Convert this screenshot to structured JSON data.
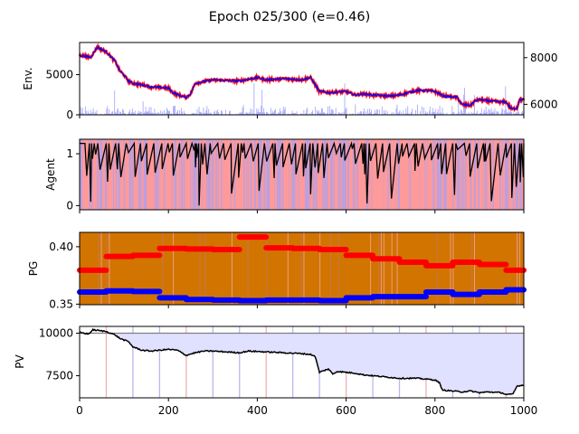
{
  "figure": {
    "title": "Epoch 025/300 (e=0.46)",
    "x_tick_labels": [
      "0",
      "200",
      "400",
      "600",
      "800",
      "1000"
    ]
  },
  "chart_data": [
    {
      "type": "line",
      "ylabel": "Env.",
      "xlim": [
        0,
        1000
      ],
      "ylim": [
        0,
        9000
      ],
      "y_ticks": [
        0,
        5000
      ],
      "y2lim": [
        5550,
        8650
      ],
      "y2_ticks": [
        6000,
        8000
      ],
      "series": [
        {
          "role": "price",
          "x": [
            0,
            25,
            40,
            60,
            80,
            90,
            100,
            110,
            120,
            150,
            160,
            200,
            210,
            230,
            240,
            250,
            260,
            300,
            360,
            400,
            420,
            460,
            500,
            520,
            540,
            545,
            560,
            600,
            620,
            640,
            660,
            700,
            720,
            760,
            780,
            800,
            820,
            850,
            860,
            880,
            890,
            900,
            920,
            950,
            960,
            970,
            975,
            985,
            990,
            1000
          ],
          "y": [
            8100,
            8020,
            8450,
            8250,
            7850,
            7450,
            7250,
            7000,
            6900,
            6800,
            6750,
            6700,
            6500,
            6350,
            6300,
            6450,
            6900,
            7050,
            7000,
            7150,
            7050,
            7100,
            7050,
            7150,
            6550,
            6550,
            6500,
            6550,
            6400,
            6450,
            6400,
            6350,
            6400,
            6600,
            6600,
            6550,
            6350,
            6300,
            6000,
            5950,
            6150,
            6200,
            6150,
            6100,
            6100,
            5850,
            5800,
            5850,
            6200,
            6200
          ]
        },
        {
          "role": "volume",
          "values_range": [
            0,
            4000
          ]
        }
      ],
      "colors": {
        "price_line": "#0000ff",
        "price_markers": "#ff0000",
        "volume_bars": "#8080ff"
      }
    },
    {
      "type": "line",
      "ylabel": "Agent",
      "xlim": [
        0,
        1000
      ],
      "ylim": [
        -0.08,
        1.28
      ],
      "y_ticks": [
        0,
        1
      ],
      "series": [
        {
          "role": "agent_output",
          "range": [
            0,
            1.2
          ]
        }
      ],
      "background_colors": {
        "buy": "#ff9a9a",
        "sell": "#b0a0e8"
      },
      "line_color": "#000000"
    },
    {
      "type": "scatter",
      "ylabel": "PG",
      "xlim": [
        0,
        1000
      ],
      "ylim": [
        0.3495,
        0.4125
      ],
      "y_ticks": [
        0.35,
        0.4
      ],
      "y_tick_labels": [
        "0.35",
        "0.40"
      ],
      "background_color": "#d27400",
      "series": [
        {
          "color": "#ff0000",
          "segments": [
            {
              "x": [
                0,
                60
              ],
              "y": 0.3795
            },
            {
              "x": [
                60,
                120
              ],
              "y": 0.3915
            },
            {
              "x": [
                120,
                180
              ],
              "y": 0.3925
            },
            {
              "x": [
                180,
                240
              ],
              "y": 0.3985
            },
            {
              "x": [
                240,
                300
              ],
              "y": 0.398
            },
            {
              "x": [
                300,
                360
              ],
              "y": 0.3975
            },
            {
              "x": [
                360,
                420
              ],
              "y": 0.4085
            },
            {
              "x": [
                420,
                480
              ],
              "y": 0.399
            },
            {
              "x": [
                480,
                540
              ],
              "y": 0.3985
            },
            {
              "x": [
                540,
                600
              ],
              "y": 0.3975
            },
            {
              "x": [
                600,
                660
              ],
              "y": 0.3925
            },
            {
              "x": [
                660,
                720
              ],
              "y": 0.3895
            },
            {
              "x": [
                720,
                780
              ],
              "y": 0.3865
            },
            {
              "x": [
                780,
                840
              ],
              "y": 0.3835
            },
            {
              "x": [
                840,
                900
              ],
              "y": 0.3865
            },
            {
              "x": [
                900,
                960
              ],
              "y": 0.3845
            },
            {
              "x": [
                960,
                1000
              ],
              "y": 0.3795
            }
          ]
        },
        {
          "color": "#0000ff",
          "segments": [
            {
              "x": [
                0,
                60
              ],
              "y": 0.3605
            },
            {
              "x": [
                60,
                120
              ],
              "y": 0.3615
            },
            {
              "x": [
                120,
                180
              ],
              "y": 0.361
            },
            {
              "x": [
                180,
                240
              ],
              "y": 0.3555
            },
            {
              "x": [
                240,
                300
              ],
              "y": 0.354
            },
            {
              "x": [
                300,
                360
              ],
              "y": 0.3535
            },
            {
              "x": [
                360,
                420
              ],
              "y": 0.353
            },
            {
              "x": [
                420,
                480
              ],
              "y": 0.3535
            },
            {
              "x": [
                480,
                540
              ],
              "y": 0.3535
            },
            {
              "x": [
                540,
                600
              ],
              "y": 0.353
            },
            {
              "x": [
                600,
                660
              ],
              "y": 0.3555
            },
            {
              "x": [
                660,
                720
              ],
              "y": 0.3565
            },
            {
              "x": [
                720,
                780
              ],
              "y": 0.3565
            },
            {
              "x": [
                780,
                840
              ],
              "y": 0.3605
            },
            {
              "x": [
                840,
                900
              ],
              "y": 0.3585
            },
            {
              "x": [
                900,
                960
              ],
              "y": 0.3605
            },
            {
              "x": [
                960,
                1000
              ],
              "y": 0.3625
            }
          ]
        }
      ]
    },
    {
      "type": "line",
      "ylabel": "PV",
      "xlim": [
        0,
        1000
      ],
      "ylim": [
        6200,
        10400
      ],
      "y_ticks": [
        7500,
        10000
      ],
      "baseline": 10000,
      "series": [
        {
          "role": "portfolio_value",
          "x": [
            0,
            20,
            30,
            60,
            80,
            90,
            110,
            120,
            140,
            160,
            200,
            220,
            240,
            260,
            280,
            300,
            360,
            380,
            420,
            460,
            500,
            520,
            530,
            540,
            560,
            570,
            580,
            600,
            620,
            640,
            660,
            700,
            720,
            760,
            780,
            800,
            810,
            815,
            820,
            840,
            860,
            880,
            900,
            920,
            950,
            960,
            975,
            985,
            1000
          ],
          "y": [
            10050,
            9950,
            10200,
            10100,
            9900,
            9700,
            9500,
            9200,
            9000,
            8950,
            9050,
            9000,
            8700,
            8850,
            8950,
            8950,
            8850,
            8950,
            8900,
            8850,
            8800,
            8750,
            8650,
            7700,
            7900,
            7600,
            7750,
            7700,
            7650,
            7550,
            7500,
            7400,
            7350,
            7350,
            7300,
            7250,
            7100,
            6700,
            6650,
            6600,
            6550,
            6600,
            6500,
            6550,
            6500,
            6400,
            6400,
            6900,
            6950
          ]
        }
      ],
      "colors": {
        "line": "#000000",
        "fill": "#e0e0ff",
        "baseline": "#808080"
      }
    }
  ]
}
